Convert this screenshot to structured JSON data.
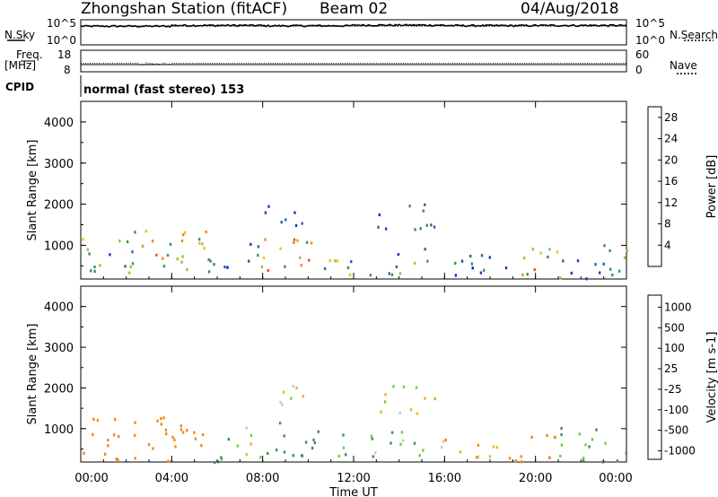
{
  "header": {
    "station_title": "Zhongshan Station (fitACF)",
    "beam": "Beam 02",
    "date": "04/Aug/2018"
  },
  "strip_panels": {
    "nsky_label": "N.Sky",
    "nsky_ticks": [
      "10^5",
      "10^0"
    ],
    "nsearch_label": "N.Search",
    "nsearch_ticks": [
      "10^5",
      "10^0"
    ],
    "freq_label_line1": "Freq.",
    "freq_label_line2": "[MHz]",
    "freq_ticks": [
      "18",
      "8"
    ],
    "nave_label": "Nave",
    "nave_ticks": [
      "60",
      "0"
    ],
    "cpid_label": "CPID",
    "cpid_value": "normal (fast stereo) 153"
  },
  "colors": {
    "power_scale": [
      "#0b1bf2",
      "#1e3fb4",
      "#2d63a6",
      "#3f8a6c",
      "#2f9a5a",
      "#9bc23a",
      "#f0c020",
      "#f28a1a",
      "#e8561a",
      "#e01818"
    ],
    "velocity_scale": [
      "#e01818",
      "#e85a1a",
      "#f08a1a",
      "#f4b020",
      "#c8c8c8",
      "#c8c8c8",
      "#6ad03a",
      "#3f8a6c",
      "#2f6aa8",
      "#1e3fb4"
    ]
  },
  "chart_data": [
    {
      "type": "line",
      "panel": "N.Sky / N.Search",
      "yscale": "log",
      "ylim": [
        1,
        100000
      ],
      "x": [
        "00:00",
        "04:00",
        "08:00",
        "12:00",
        "16:00",
        "20:00",
        "00:00"
      ],
      "series": [
        {
          "name": "N.Sky",
          "values": [
            8000,
            12000,
            10000,
            14000,
            11000,
            12000,
            10000
          ]
        },
        {
          "name": "N.Search",
          "values": [
            9000,
            9500,
            9000,
            9500,
            9000,
            9500,
            9000
          ]
        }
      ]
    },
    {
      "type": "line",
      "panel": "Freq. / Nave",
      "series": [
        {
          "name": "Freq.",
          "unit": "MHz",
          "ylim": [
            8,
            18
          ],
          "x": [
            "00:00",
            "02:30",
            "03:00",
            "03:30",
            "04:00",
            "24:00"
          ],
          "values": [
            12,
            12,
            11,
            11.2,
            12,
            12
          ]
        },
        {
          "name": "Nave",
          "ylim": [
            0,
            60
          ],
          "values": [
            30,
            30,
            30,
            30,
            30,
            30
          ]
        }
      ]
    },
    {
      "type": "heatmap",
      "panel": "Power",
      "title": "",
      "xlabel": "Time UT",
      "ylabel": "Slant Range [km]",
      "xlim": [
        "00:00",
        "00:00"
      ],
      "x_ticks": [
        "00:00",
        "04:00",
        "08:00",
        "12:00",
        "16:00",
        "20:00",
        "00:00"
      ],
      "ylim": [
        180,
        4500
      ],
      "y_ticks": [
        "1000",
        "2000",
        "3000",
        "4000"
      ],
      "colorbar": {
        "label": "Power [dB]",
        "ticks": [
          "4",
          "8",
          "12",
          "16",
          "20",
          "24",
          "28"
        ],
        "range": [
          0,
          30
        ]
      },
      "regions": [
        {
          "t0": 0.0,
          "t1": 2.5,
          "r0": 200,
          "r1": 1300,
          "value": 12
        },
        {
          "t0": 2.3,
          "t1": 5.5,
          "r0": 200,
          "r1": 1400,
          "value": 18
        },
        {
          "t0": 5.5,
          "t1": 7.0,
          "r0": 200,
          "r1": 900,
          "value": 8
        },
        {
          "t0": 7.0,
          "t1": 8.0,
          "r0": 300,
          "r1": 1200,
          "value": 10
        },
        {
          "t0": 8.0,
          "t1": 10.5,
          "r0": 300,
          "r1": 1200,
          "value": 20
        },
        {
          "t0": 8.0,
          "t1": 10.0,
          "r0": 1500,
          "r1": 2100,
          "value": 8
        },
        {
          "t0": 10.5,
          "t1": 13.0,
          "r0": 300,
          "r1": 900,
          "value": 14
        },
        {
          "t0": 13.0,
          "t1": 15.8,
          "r0": 1400,
          "r1": 2100,
          "value": 8
        },
        {
          "t0": 13.5,
          "t1": 15.5,
          "r0": 300,
          "r1": 1000,
          "value": 12
        },
        {
          "t0": 15.8,
          "t1": 19.0,
          "r0": 200,
          "r1": 800,
          "value": 8
        },
        {
          "t0": 19.0,
          "t1": 21.0,
          "r0": 200,
          "r1": 1000,
          "value": 18
        },
        {
          "t0": 21.0,
          "t1": 24.0,
          "r0": 200,
          "r1": 1100,
          "value": 10
        }
      ]
    },
    {
      "type": "heatmap",
      "panel": "Velocity",
      "xlabel": "Time UT",
      "ylabel": "Slant Range [km]",
      "x_ticks": [
        "00:00",
        "04:00",
        "08:00",
        "12:00",
        "16:00",
        "20:00",
        "00:00"
      ],
      "ylim": [
        180,
        4500
      ],
      "y_ticks": [
        "1000",
        "2000",
        "3000",
        "4000"
      ],
      "colorbar": {
        "label": "Velocity [m s-1]",
        "ticks": [
          "1000",
          "500",
          "100",
          "25",
          "-25",
          "-100",
          "-500",
          "-1000"
        ]
      },
      "regions": [
        {
          "t0": 0.0,
          "t1": 2.5,
          "r0": 200,
          "r1": 1300,
          "value": -300
        },
        {
          "t0": 2.3,
          "t1": 5.5,
          "r0": 200,
          "r1": 1400,
          "value": -300
        },
        {
          "t0": 5.5,
          "t1": 7.0,
          "r0": 200,
          "r1": 900,
          "value": 50
        },
        {
          "t0": 7.0,
          "t1": 8.0,
          "r0": 300,
          "r1": 1200,
          "value": 0
        },
        {
          "t0": 8.0,
          "t1": 10.5,
          "r0": 300,
          "r1": 1200,
          "value": 300
        },
        {
          "t0": 8.0,
          "t1": 10.0,
          "r0": 1500,
          "r1": 2100,
          "value": 0
        },
        {
          "t0": 10.5,
          "t1": 13.0,
          "r0": 300,
          "r1": 900,
          "value": 100
        },
        {
          "t0": 13.0,
          "t1": 15.8,
          "r0": 1400,
          "r1": 2100,
          "value": 0
        },
        {
          "t0": 13.5,
          "t1": 15.5,
          "r0": 300,
          "r1": 1000,
          "value": 100
        },
        {
          "t0": 15.8,
          "t1": 19.0,
          "r0": 200,
          "r1": 800,
          "value": -100
        },
        {
          "t0": 19.0,
          "t1": 21.0,
          "r0": 200,
          "r1": 1000,
          "value": -300
        },
        {
          "t0": 21.0,
          "t1": 24.0,
          "r0": 200,
          "r1": 1100,
          "value": 100
        }
      ]
    }
  ]
}
